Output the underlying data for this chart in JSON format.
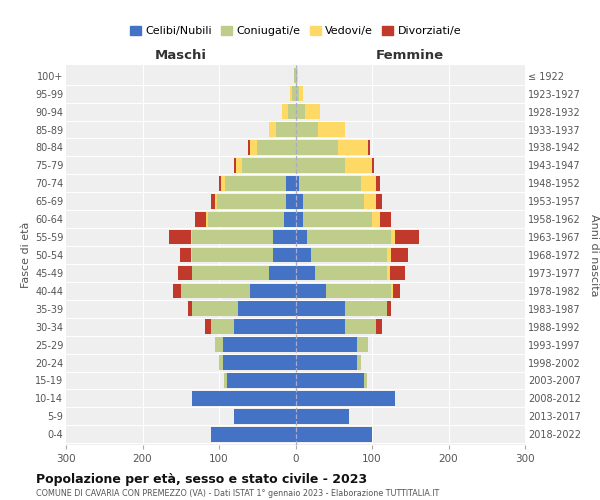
{
  "age_groups": [
    "0-4",
    "5-9",
    "10-14",
    "15-19",
    "20-24",
    "25-29",
    "30-34",
    "35-39",
    "40-44",
    "45-49",
    "50-54",
    "55-59",
    "60-64",
    "65-69",
    "70-74",
    "75-79",
    "80-84",
    "85-89",
    "90-94",
    "95-99",
    "100+"
  ],
  "birth_years": [
    "2018-2022",
    "2013-2017",
    "2008-2012",
    "2003-2007",
    "1998-2002",
    "1993-1997",
    "1988-1992",
    "1983-1987",
    "1978-1982",
    "1973-1977",
    "1968-1972",
    "1963-1967",
    "1958-1962",
    "1953-1957",
    "1948-1952",
    "1943-1947",
    "1938-1942",
    "1933-1937",
    "1928-1932",
    "1923-1927",
    "≤ 1922"
  ],
  "male": {
    "celibi": [
      110,
      80,
      135,
      90,
      95,
      95,
      80,
      75,
      60,
      35,
      30,
      30,
      15,
      12,
      12,
      0,
      0,
      0,
      0,
      0,
      0
    ],
    "coniugati": [
      0,
      0,
      0,
      3,
      5,
      10,
      30,
      60,
      90,
      100,
      105,
      105,
      100,
      90,
      80,
      70,
      50,
      25,
      10,
      4,
      2
    ],
    "vedovi": [
      0,
      0,
      0,
      0,
      0,
      0,
      0,
      0,
      0,
      0,
      1,
      2,
      2,
      3,
      5,
      8,
      10,
      10,
      8,
      3,
      0
    ],
    "divorziati": [
      0,
      0,
      0,
      0,
      0,
      0,
      8,
      5,
      10,
      18,
      15,
      28,
      15,
      5,
      3,
      2,
      2,
      0,
      0,
      0,
      0
    ]
  },
  "female": {
    "nubili": [
      100,
      70,
      130,
      90,
      80,
      80,
      65,
      65,
      40,
      25,
      20,
      15,
      10,
      10,
      5,
      0,
      0,
      0,
      0,
      0,
      0
    ],
    "coniugate": [
      0,
      0,
      0,
      3,
      5,
      15,
      40,
      55,
      85,
      95,
      100,
      110,
      90,
      80,
      80,
      65,
      55,
      30,
      12,
      5,
      2
    ],
    "vedove": [
      0,
      0,
      0,
      0,
      0,
      0,
      0,
      0,
      2,
      3,
      5,
      5,
      10,
      15,
      20,
      35,
      40,
      35,
      20,
      5,
      1
    ],
    "divorziate": [
      0,
      0,
      0,
      0,
      0,
      0,
      8,
      5,
      10,
      20,
      22,
      32,
      15,
      8,
      5,
      2,
      2,
      0,
      0,
      0,
      0
    ]
  },
  "colors": {
    "celibi": "#4472C4",
    "coniugati": "#BFCD8A",
    "vedovi": "#FFD966",
    "divorziati": "#C0392B"
  },
  "legend_labels": [
    "Celibi/Nubili",
    "Coniugati/e",
    "Vedovi/e",
    "Divorziati/e"
  ],
  "title": "Popolazione per età, sesso e stato civile - 2023",
  "subtitle": "COMUNE DI CAVARIA CON PREMEZZO (VA) - Dati ISTAT 1° gennaio 2023 - Elaborazione TUTTITALIA.IT",
  "xlabel_left": "Maschi",
  "xlabel_right": "Femmine",
  "ylabel_left": "Fasce di età",
  "ylabel_right": "Anni di nascita",
  "xlim": 300,
  "background_color": "#ffffff"
}
